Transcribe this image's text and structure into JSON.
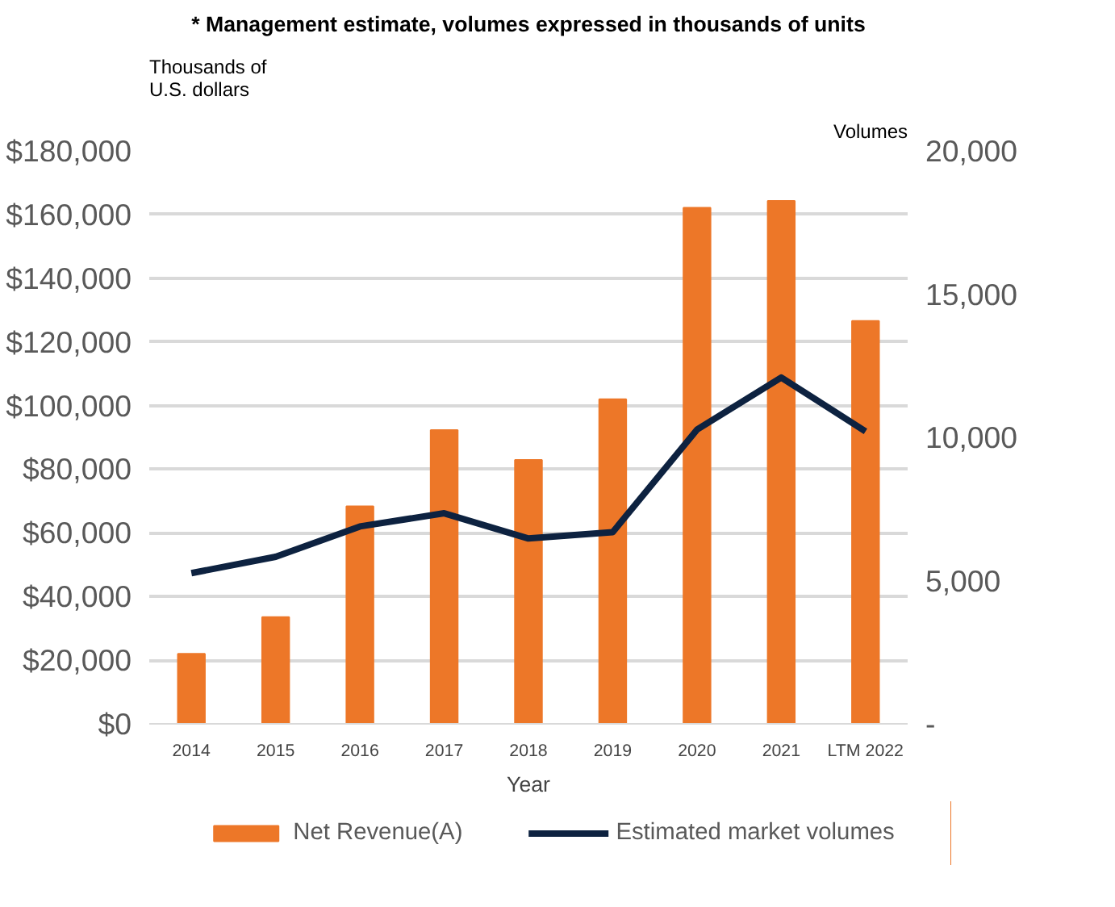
{
  "chart_data": {
    "type": "bar",
    "subtitle": "* Management estimate, volumes expressed in thousands of units",
    "xlabel": "Year",
    "ylabel": "Thousands of\nU.S. dollars",
    "y2label": "Volumes",
    "categories": [
      "2014",
      "2015",
      "2016",
      "2017",
      "2018",
      "2019",
      "2020",
      "2021",
      "LTM 2022"
    ],
    "series": [
      {
        "name": "Net Revenue(A)",
        "type": "bar",
        "color": "#ed7728",
        "values": [
          22000,
          33500,
          68300,
          92300,
          82900,
          102000,
          162100,
          164300,
          126600
        ]
      },
      {
        "name": "Estimated market volumes",
        "type": "line",
        "axis": "y2",
        "color": "#0d2240",
        "values": [
          5260,
          5830,
          6890,
          7350,
          6470,
          6690,
          10270,
          12090,
          10210
        ]
      }
    ],
    "ylim": [
      0,
      180000
    ],
    "yticks": [
      {
        "value": 0,
        "label": "$0"
      },
      {
        "value": 20000,
        "label": "$20,000"
      },
      {
        "value": 40000,
        "label": "$40,000"
      },
      {
        "value": 60000,
        "label": "$60,000"
      },
      {
        "value": 80000,
        "label": "$80,000"
      },
      {
        "value": 100000,
        "label": "$100,000"
      },
      {
        "value": 120000,
        "label": "$120,000"
      },
      {
        "value": 140000,
        "label": "$140,000"
      },
      {
        "value": 160000,
        "label": "$160,000"
      },
      {
        "value": 180000,
        "label": "$180,000"
      }
    ],
    "y2lim": [
      0,
      20000
    ],
    "y2ticks": [
      {
        "value": 0,
        "label": "-"
      },
      {
        "value": 5000,
        "label": "5,000"
      },
      {
        "value": 10000,
        "label": "10,000"
      },
      {
        "value": 15000,
        "label": "15,000"
      },
      {
        "value": 20000,
        "label": "20,000"
      }
    ],
    "grid": "y",
    "legend": "bottom",
    "marker": "none",
    "line_style": "solid"
  }
}
